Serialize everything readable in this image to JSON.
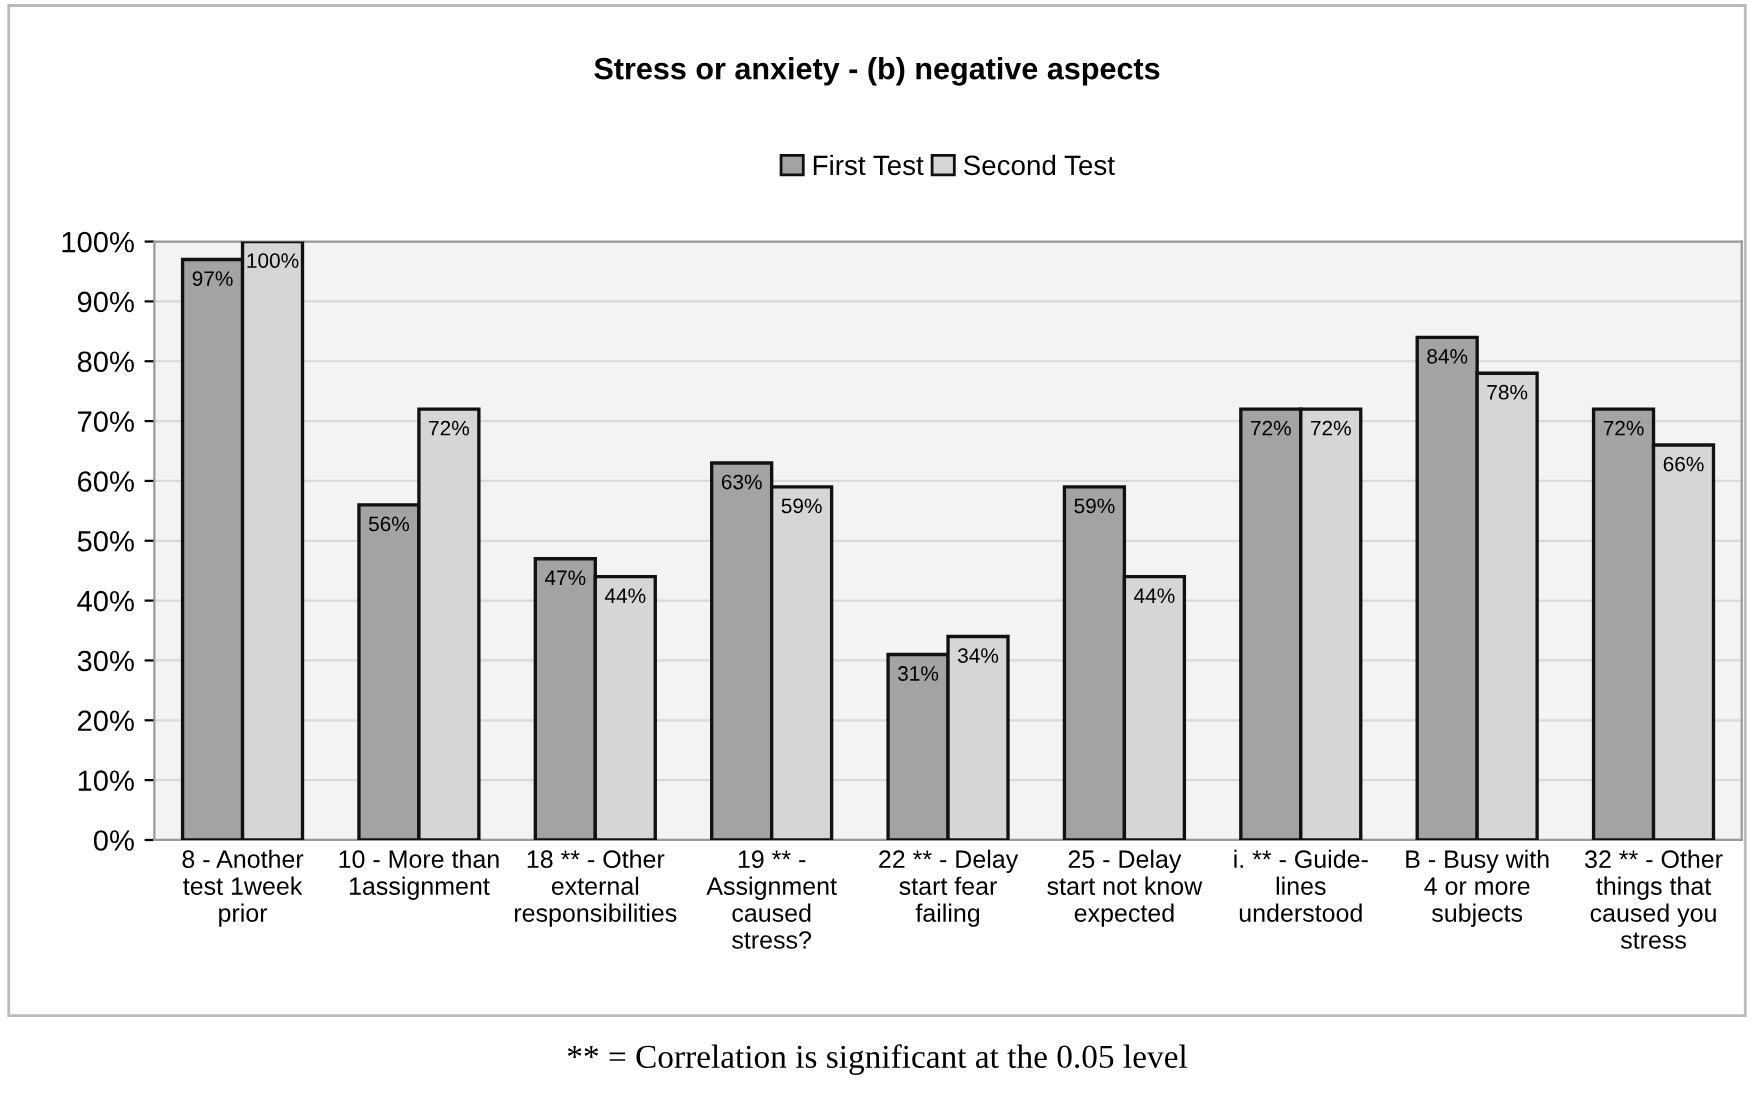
{
  "chart_data": {
    "type": "bar",
    "title": "Stress or anxiety - (b) negative aspects",
    "categories": [
      "8 - Another\ntest 1week\nprior",
      "10 - More than\n1assignment",
      "18 ** - Other\nexternal\nresponsibilities",
      "19 ** -\nAssignment\ncaused\nstress?",
      "22 ** - Delay\nstart fear\nfailing",
      "25 - Delay\nstart not know\nexpected",
      "i. ** - Guide-\nlines\nunderstood",
      "B - Busy with\n4 or more\nsubjects",
      "32 ** - Other\nthings that\ncaused you\nstress"
    ],
    "series": [
      {
        "name": "First Test",
        "color": "#a3a3a3",
        "values": [
          97,
          56,
          47,
          63,
          31,
          59,
          72,
          84,
          72
        ],
        "value_labels": [
          "97%",
          "56%",
          "47%",
          "63%",
          "31%",
          "59%",
          "72%",
          "84%",
          "72%"
        ]
      },
      {
        "name": "Second Test",
        "color": "#d6d6d6",
        "values": [
          100,
          72,
          44,
          59,
          34,
          44,
          72,
          78,
          66
        ],
        "value_labels": [
          "100%",
          "72%",
          "44%",
          "59%",
          "34%",
          "44%",
          "72%",
          "78%",
          "66%"
        ]
      }
    ],
    "ylim": [
      0,
      100
    ],
    "yticks": [
      {
        "value": 0,
        "label": "0%"
      },
      {
        "value": 10,
        "label": "10%"
      },
      {
        "value": 20,
        "label": "20%"
      },
      {
        "value": 30,
        "label": "30%"
      },
      {
        "value": 40,
        "label": "40%"
      },
      {
        "value": 50,
        "label": "50%"
      },
      {
        "value": 60,
        "label": "60%"
      },
      {
        "value": 70,
        "label": "70%"
      },
      {
        "value": 80,
        "label": "80%"
      },
      {
        "value": 90,
        "label": "90%"
      },
      {
        "value": 100,
        "label": "100%"
      }
    ],
    "grid": "y",
    "legend": "top",
    "annotations": [
      "** = Correlation is significant at the 0.05 level"
    ]
  }
}
